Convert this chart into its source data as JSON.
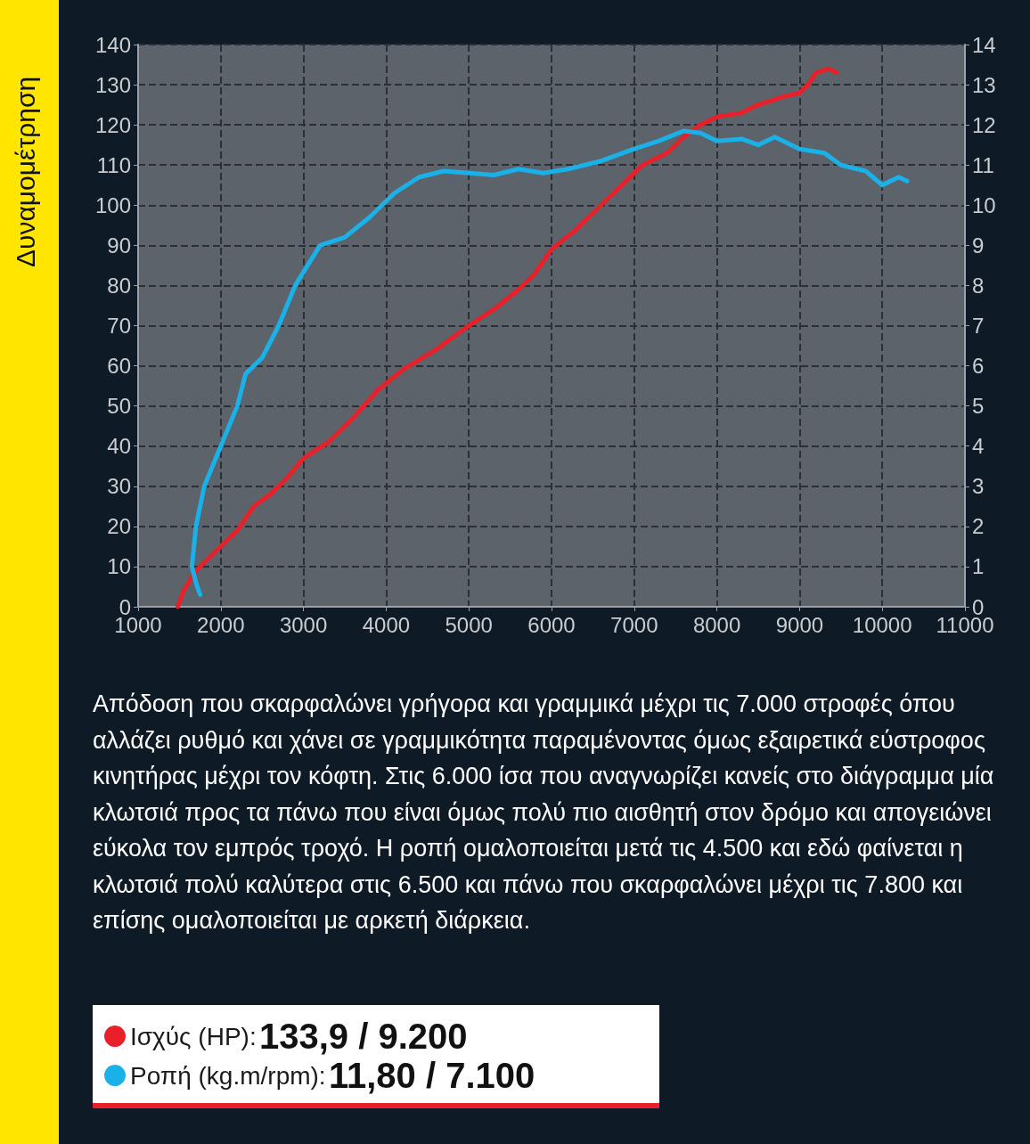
{
  "chart_data": {
    "type": "line",
    "title": "Δυναμομέτρηση",
    "xlim": [
      1000,
      11000
    ],
    "xticks": [
      1000,
      2000,
      3000,
      4000,
      5000,
      6000,
      7000,
      8000,
      9000,
      10000,
      11000
    ],
    "ylim": [
      0,
      140
    ],
    "yticks": [
      0,
      10,
      20,
      30,
      40,
      50,
      60,
      70,
      80,
      90,
      100,
      110,
      120,
      130,
      140
    ],
    "y2lim": [
      0,
      14
    ],
    "y2ticks": [
      0,
      1,
      2,
      3,
      4,
      5,
      6,
      7,
      8,
      9,
      10,
      11,
      12,
      13,
      14
    ],
    "grid": true,
    "legend": "bottom",
    "marker": "none",
    "line_style": "solid",
    "annotations": [
      "Απόδοση που σκαρφαλώνει γρήγορα και γραμμικά μέχρι τις 7.000 στροφές όπου αλλάζει ρυθμό και χάνει σε γραμμικότητα παραμένοντας όμως εξαιρετικά εύστροφος κινητήρας μέχρι τον κόφτη. Στις 6.000 ίσα που αναγνωρίζει κανείς στο διάγραμμα μία κλωτσιά προς τα πάνω που είναι όμως πολύ πιο αισθητή στον δρόμο και απογειώνει εύκολα τον εμπρός τροχό. Η ροπή ομαλοποιείται μετά τις 4.500 και εδώ φαίνεται η κλωτσιά πολύ καλύτερα στις 6.500 και πάνω που σκαρφαλώνει μέχρι τις 7.800 και επίσης ομαλοποιείται με αρκετή διάρκεια.",
      "133,9 / 9.200",
      "11,80 / 7.100"
    ],
    "series": [
      {
        "name": "Ισχύς (HP):",
        "color": "#e8202a",
        "x": [
          1480,
          1550,
          1700,
          2000,
          2200,
          2400,
          2600,
          2800,
          3000,
          3300,
          3600,
          3900,
          4200,
          4600,
          5000,
          5300,
          5600,
          5800,
          6000,
          6300,
          6600,
          6900,
          7100,
          7400,
          7600,
          7800,
          8000,
          8300,
          8500,
          8800,
          9000,
          9100,
          9200,
          9350,
          9450
        ],
        "values": [
          0,
          4,
          9,
          15,
          19,
          25,
          28,
          32,
          37,
          41,
          47,
          54,
          59,
          64,
          70,
          74,
          79,
          83,
          89,
          94,
          100,
          106,
          110,
          113,
          117,
          120,
          122,
          123,
          125,
          127,
          128,
          130,
          133,
          134,
          133
        ]
      },
      {
        "name": "Ροπή (kg.m/rpm):",
        "color": "#1ab0e8",
        "axis": "y2",
        "x": [
          1750,
          1700,
          1650,
          1700,
          1800,
          2000,
          2200,
          2300,
          2500,
          2700,
          2900,
          3200,
          3500,
          3800,
          4100,
          4400,
          4700,
          5000,
          5300,
          5600,
          5900,
          6200,
          6600,
          7000,
          7300,
          7600,
          7800,
          8000,
          8300,
          8500,
          8700,
          9000,
          9300,
          9500,
          9800,
          10000,
          10200,
          10300
        ],
        "values": [
          0.3,
          0.6,
          1,
          2,
          3,
          4,
          5,
          5.8,
          6.2,
          7,
          8,
          9,
          9.2,
          9.7,
          10.3,
          10.7,
          10.85,
          10.8,
          10.75,
          10.9,
          10.8,
          10.9,
          11.1,
          11.4,
          11.6,
          11.85,
          11.8,
          11.6,
          11.65,
          11.5,
          11.7,
          11.4,
          11.3,
          11,
          10.85,
          10.5,
          10.7,
          10.6
        ]
      }
    ]
  }
}
